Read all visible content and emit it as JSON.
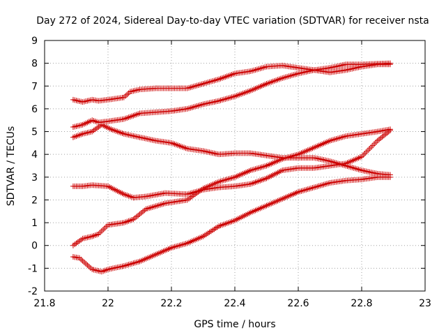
{
  "chart_data": {
    "type": "scatter",
    "title": "Day 272 of 2024, Sidereal Day-to-day VTEC variation (SDTVAR) for receiver nsta",
    "xlabel": "GPS time / hours",
    "ylabel": "SDTVAR / TECUs",
    "xlim": [
      21.8,
      23
    ],
    "ylim": [
      -2,
      9
    ],
    "xticks": [
      "21.8",
      "22",
      "22.2",
      "22.4",
      "22.6",
      "22.8",
      "23"
    ],
    "yticks": [
      "-2",
      "-1",
      "0",
      "1",
      "2",
      "3",
      "4",
      "5",
      "6",
      "7",
      "8",
      "9"
    ],
    "grid": true,
    "marker": "+",
    "marker_color": "#cc0000",
    "series": [
      {
        "points": [
          [
            21.89,
            6.4
          ],
          [
            21.92,
            6.3
          ],
          [
            21.95,
            6.4
          ],
          [
            21.97,
            6.35
          ],
          [
            22.0,
            6.4
          ],
          [
            22.05,
            6.5
          ],
          [
            22.07,
            6.75
          ],
          [
            22.1,
            6.85
          ],
          [
            22.15,
            6.9
          ],
          [
            22.2,
            6.9
          ],
          [
            22.25,
            6.9
          ],
          [
            22.3,
            7.1
          ],
          [
            22.35,
            7.3
          ],
          [
            22.4,
            7.55
          ],
          [
            22.45,
            7.65
          ],
          [
            22.5,
            7.85
          ],
          [
            22.55,
            7.9
          ],
          [
            22.6,
            7.8
          ],
          [
            22.65,
            7.7
          ],
          [
            22.7,
            7.6
          ],
          [
            22.75,
            7.7
          ],
          [
            22.8,
            7.85
          ],
          [
            22.85,
            7.95
          ],
          [
            22.89,
            7.95
          ]
        ]
      },
      {
        "points": [
          [
            21.89,
            5.2
          ],
          [
            21.92,
            5.3
          ],
          [
            21.95,
            5.5
          ],
          [
            21.97,
            5.4
          ],
          [
            22.0,
            5.45
          ],
          [
            22.05,
            5.55
          ],
          [
            22.1,
            5.8
          ],
          [
            22.15,
            5.85
          ],
          [
            22.2,
            5.9
          ],
          [
            22.25,
            6.0
          ],
          [
            22.3,
            6.2
          ],
          [
            22.35,
            6.35
          ],
          [
            22.4,
            6.55
          ],
          [
            22.45,
            6.8
          ],
          [
            22.5,
            7.1
          ],
          [
            22.55,
            7.35
          ],
          [
            22.6,
            7.55
          ],
          [
            22.65,
            7.7
          ],
          [
            22.7,
            7.8
          ],
          [
            22.75,
            7.95
          ],
          [
            22.8,
            7.95
          ],
          [
            22.85,
            7.98
          ],
          [
            22.89,
            8.0
          ]
        ]
      },
      {
        "points": [
          [
            21.89,
            4.75
          ],
          [
            21.92,
            4.9
          ],
          [
            21.95,
            5.0
          ],
          [
            21.98,
            5.3
          ],
          [
            22.01,
            5.1
          ],
          [
            22.05,
            4.9
          ],
          [
            22.1,
            4.75
          ],
          [
            22.15,
            4.6
          ],
          [
            22.2,
            4.5
          ],
          [
            22.25,
            4.25
          ],
          [
            22.3,
            4.15
          ],
          [
            22.35,
            4.0
          ],
          [
            22.4,
            4.05
          ],
          [
            22.45,
            4.05
          ],
          [
            22.5,
            3.95
          ],
          [
            22.55,
            3.85
          ],
          [
            22.6,
            3.85
          ],
          [
            22.65,
            3.85
          ],
          [
            22.7,
            3.7
          ],
          [
            22.75,
            3.5
          ],
          [
            22.8,
            3.3
          ],
          [
            22.85,
            3.15
          ],
          [
            22.89,
            3.1
          ]
        ]
      },
      {
        "points": [
          [
            21.89,
            2.6
          ],
          [
            21.92,
            2.6
          ],
          [
            21.95,
            2.65
          ],
          [
            22.0,
            2.6
          ],
          [
            22.05,
            2.25
          ],
          [
            22.08,
            2.1
          ],
          [
            22.12,
            2.15
          ],
          [
            22.18,
            2.3
          ],
          [
            22.25,
            2.25
          ],
          [
            22.3,
            2.45
          ],
          [
            22.35,
            2.55
          ],
          [
            22.4,
            2.6
          ],
          [
            22.45,
            2.7
          ],
          [
            22.5,
            2.95
          ],
          [
            22.55,
            3.3
          ],
          [
            22.6,
            3.4
          ],
          [
            22.65,
            3.4
          ],
          [
            22.7,
            3.5
          ],
          [
            22.75,
            3.6
          ],
          [
            22.8,
            3.9
          ],
          [
            22.85,
            4.6
          ],
          [
            22.89,
            5.05
          ]
        ]
      },
      {
        "points": [
          [
            21.89,
            0.0
          ],
          [
            21.92,
            0.3
          ],
          [
            21.95,
            0.4
          ],
          [
            21.97,
            0.5
          ],
          [
            22.0,
            0.9
          ],
          [
            22.05,
            1.0
          ],
          [
            22.08,
            1.15
          ],
          [
            22.12,
            1.6
          ],
          [
            22.18,
            1.85
          ],
          [
            22.25,
            2.0
          ],
          [
            22.3,
            2.5
          ],
          [
            22.35,
            2.8
          ],
          [
            22.4,
            3.0
          ],
          [
            22.45,
            3.3
          ],
          [
            22.5,
            3.5
          ],
          [
            22.55,
            3.8
          ],
          [
            22.6,
            4.0
          ],
          [
            22.65,
            4.3
          ],
          [
            22.7,
            4.6
          ],
          [
            22.75,
            4.8
          ],
          [
            22.8,
            4.9
          ],
          [
            22.85,
            5.0
          ],
          [
            22.89,
            5.1
          ]
        ]
      },
      {
        "points": [
          [
            21.89,
            -0.5
          ],
          [
            21.91,
            -0.55
          ],
          [
            21.93,
            -0.8
          ],
          [
            21.95,
            -1.05
          ],
          [
            21.98,
            -1.15
          ],
          [
            22.0,
            -1.05
          ],
          [
            22.05,
            -0.9
          ],
          [
            22.1,
            -0.7
          ],
          [
            22.15,
            -0.4
          ],
          [
            22.2,
            -0.1
          ],
          [
            22.25,
            0.1
          ],
          [
            22.3,
            0.4
          ],
          [
            22.35,
            0.85
          ],
          [
            22.4,
            1.1
          ],
          [
            22.45,
            1.45
          ],
          [
            22.5,
            1.75
          ],
          [
            22.55,
            2.05
          ],
          [
            22.6,
            2.35
          ],
          [
            22.65,
            2.55
          ],
          [
            22.7,
            2.75
          ],
          [
            22.75,
            2.85
          ],
          [
            22.8,
            2.9
          ],
          [
            22.85,
            3.0
          ],
          [
            22.89,
            3.0
          ]
        ]
      }
    ]
  }
}
